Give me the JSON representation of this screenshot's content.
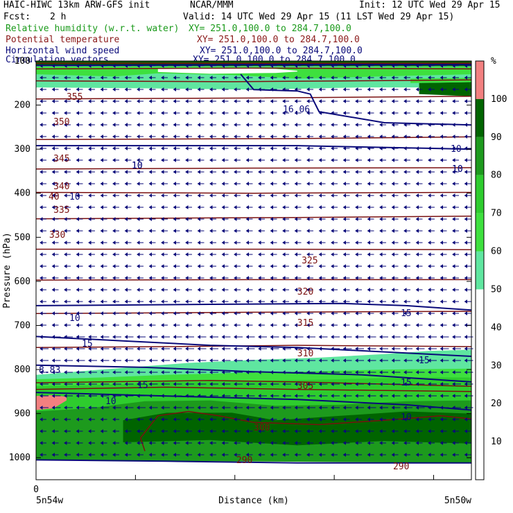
{
  "header": {
    "title_left": "HAIC-HIWC 13km ARW-GFS init",
    "org": "NCAR/MMM",
    "init": "Init: 12 UTC Wed 29 Apr 15",
    "fcst_label": "Fcst:",
    "fcst_value": "2 h",
    "valid": "Valid: 14 UTC Wed 29 Apr 15 (11 LST Wed 29 Apr 15)"
  },
  "fields": [
    {
      "name": "Relative humidity (w.r.t. water)",
      "xy": "XY= 251.0,100.0 to 284.7,100.0",
      "color": "#1a9a1a"
    },
    {
      "name": "Potential temperature",
      "xy": "XY= 251.0,100.0 to 284.7,100.0",
      "color": "#8b1a1a"
    },
    {
      "name": "Horizontal wind speed",
      "xy": "XY= 251.0,100.0 to 284.7,100.0",
      "color": "#0a0a7a"
    },
    {
      "name": "Circulation vectors",
      "xy": "XY= 251.0,100.0 to 284.7,100.0",
      "color": "#0a0a7a"
    }
  ],
  "chart_data": {
    "type": "cross-section",
    "xlabel": "Distance (km)",
    "ylabel": "Pressure (hPa)",
    "x_zero_label": "0",
    "x_endpoints": [
      "5n54w",
      "5n50w"
    ],
    "ylim": [
      1050,
      100
    ],
    "y_ticks": [
      100,
      200,
      300,
      400,
      500,
      600,
      700,
      800,
      900,
      1000
    ],
    "colorbar": {
      "unit": "%",
      "labels": [
        10,
        20,
        30,
        40,
        50,
        60,
        70,
        80,
        90,
        100
      ],
      "bins": [
        {
          "from": 100,
          "to": 110,
          "color": "#f28080"
        },
        {
          "from": 90,
          "to": 100,
          "color": "#006400"
        },
        {
          "from": 80,
          "to": 90,
          "color": "#1d9a1d"
        },
        {
          "from": 70,
          "to": 80,
          "color": "#2ecc2e"
        },
        {
          "from": 60,
          "to": 70,
          "color": "#3ee03e"
        },
        {
          "from": 50,
          "to": 60,
          "color": "#5fe6a0"
        },
        {
          "from": 0,
          "to": 50,
          "color": "#ffffff"
        }
      ]
    },
    "theta_labels": [
      "355",
      "350",
      "345",
      "340",
      "335",
      "330",
      "325",
      "320",
      "315",
      "310",
      "305",
      "300",
      "290",
      "290"
    ],
    "wind_labels": [
      "10",
      "10",
      "10",
      "15",
      "15",
      "15",
      "15",
      "15",
      "10",
      "10",
      "10",
      "10",
      "10",
      "10"
    ],
    "special_labels": [
      "16.06",
      "8.83",
      "40"
    ]
  }
}
